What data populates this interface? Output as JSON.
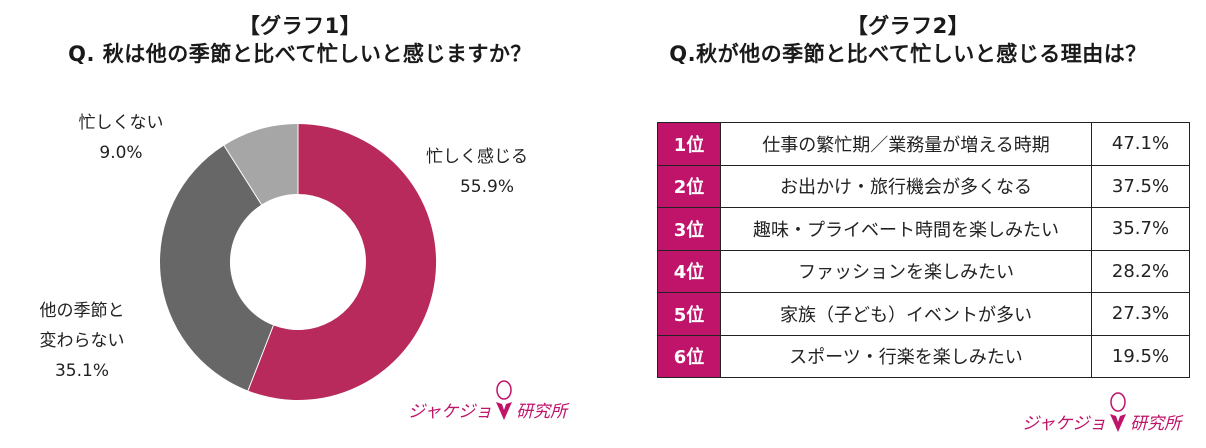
{
  "graph1": {
    "heading": "【グラフ1】",
    "question": "Q. 秋は他の季節と比べて忙しいと感じますか？",
    "labels": {
      "busy": {
        "line1": "忙しく感じる",
        "value": "55.9%"
      },
      "not_busy": {
        "line1": "忙しくない",
        "value": "9.0%"
      },
      "same": {
        "line1": "他の季節と",
        "line2": "変わらない",
        "value": "35.1%"
      }
    }
  },
  "graph2": {
    "heading": "【グラフ2】",
    "question": "Q.秋が他の季節と比べて忙しいと感じる理由は？",
    "rows": [
      {
        "rank": "1位",
        "reason": "仕事の繁忙期／業務量が増える時期",
        "value": "47.1%"
      },
      {
        "rank": "2位",
        "reason": "お出かけ・旅行機会が多くなる",
        "value": "37.5%"
      },
      {
        "rank": "3位",
        "reason": "趣味・プライベート時間を楽しみたい",
        "value": "35.7%"
      },
      {
        "rank": "4位",
        "reason": "ファッションを楽しみたい",
        "value": "28.2%"
      },
      {
        "rank": "5位",
        "reason": "家族（子ども）イベントが多い",
        "value": "27.3%"
      },
      {
        "rank": "6位",
        "reason": "スポーツ・行楽を楽しみたい",
        "value": "19.5%"
      }
    ]
  },
  "logo": {
    "text_left": "ジャケジョ",
    "text_right": "研究所"
  },
  "colors": {
    "busy": "#b92a5c",
    "same": "#676767",
    "not_busy": "#a6a6a6",
    "rank_bg": "#c0136a"
  },
  "chart_data": [
    {
      "type": "pie",
      "title": "【グラフ1】 Q. 秋は他の季節と比べて忙しいと感じますか？",
      "categories": [
        "忙しく感じる",
        "他の季節と変わらない",
        "忙しくない"
      ],
      "values": [
        55.9,
        35.1,
        9.0
      ],
      "unit": "%",
      "donut": true,
      "colors": [
        "#b92a5c",
        "#676767",
        "#a6a6a6"
      ]
    },
    {
      "type": "table",
      "title": "【グラフ2】 Q.秋が他の季節と比べて忙しいと感じる理由は？",
      "columns": [
        "rank",
        "reason",
        "percent"
      ],
      "categories": [
        "仕事の繁忙期／業務量が増える時期",
        "お出かけ・旅行機会が多くなる",
        "趣味・プライベート時間を楽しみたい",
        "ファッションを楽しみたい",
        "家族（子ども）イベントが多い",
        "スポーツ・行楽を楽しみたい"
      ],
      "values": [
        47.1,
        37.5,
        35.7,
        28.2,
        27.3,
        19.5
      ],
      "unit": "%"
    }
  ]
}
